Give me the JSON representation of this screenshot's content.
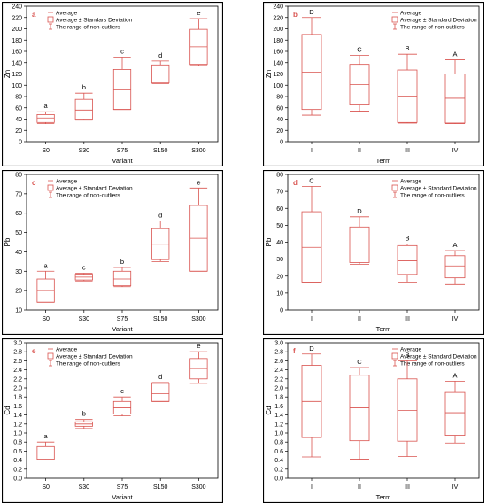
{
  "chart_data": [
    {
      "type": "box",
      "panel_label": "a",
      "xlabel": "Variant",
      "ylabel": "Zn",
      "ylim": [
        0,
        240
      ],
      "yticks": [
        0,
        20,
        40,
        60,
        80,
        100,
        120,
        140,
        160,
        180,
        200,
        220,
        240
      ],
      "legend": [
        "Average",
        "Average ± Standars Deviation",
        "The range of non-outliers"
      ],
      "legend_position": "top-left",
      "categories": [
        "S0",
        "S30",
        "S75",
        "S150",
        "S300"
      ],
      "boxes": [
        {
          "category": "S0",
          "whisker_low": 32,
          "box_low": 34,
          "mean": 42,
          "box_high": 48,
          "whisker_high": 53,
          "group": "a"
        },
        {
          "category": "S30",
          "whisker_low": 38,
          "box_low": 40,
          "mean": 56,
          "box_high": 75,
          "whisker_high": 86,
          "group": "b"
        },
        {
          "category": "S75",
          "whisker_low": 57,
          "box_low": 57,
          "mean": 92,
          "box_high": 128,
          "whisker_high": 150,
          "group": "c"
        },
        {
          "category": "S150",
          "whisker_low": 103,
          "box_low": 104,
          "mean": 120,
          "box_high": 136,
          "whisker_high": 143,
          "group": "d"
        },
        {
          "category": "S300",
          "whisker_low": 135,
          "box_low": 137,
          "mean": 168,
          "box_high": 199,
          "whisker_high": 218,
          "group": "e"
        }
      ]
    },
    {
      "type": "box",
      "panel_label": "b",
      "xlabel": "Term",
      "ylabel": "Zn",
      "ylim": [
        0,
        240
      ],
      "yticks": [
        0,
        20,
        40,
        60,
        80,
        100,
        120,
        140,
        160,
        180,
        200,
        220,
        240
      ],
      "legend": [
        "Average",
        "Average ± Standard Deviation",
        "The range of non-outliers"
      ],
      "legend_position": "top-right",
      "categories": [
        "I",
        "II",
        "III",
        "IV"
      ],
      "boxes": [
        {
          "category": "I",
          "whisker_low": 47,
          "box_low": 57,
          "mean": 123,
          "box_high": 190,
          "whisker_high": 220,
          "group": "D"
        },
        {
          "category": "II",
          "whisker_low": 54,
          "box_low": 65,
          "mean": 101,
          "box_high": 137,
          "whisker_high": 153,
          "group": "C"
        },
        {
          "category": "III",
          "whisker_low": 33,
          "box_low": 34,
          "mean": 81,
          "box_high": 127,
          "whisker_high": 155,
          "group": "B"
        },
        {
          "category": "IV",
          "whisker_low": 32,
          "box_low": 33,
          "mean": 77,
          "box_high": 120,
          "whisker_high": 145,
          "group": "A"
        }
      ]
    },
    {
      "type": "box",
      "panel_label": "c",
      "xlabel": "Variant",
      "ylabel": "Pb",
      "ylim": [
        10,
        80
      ],
      "yticks": [
        10,
        20,
        30,
        40,
        50,
        60,
        70,
        80
      ],
      "legend": [
        "Average",
        "Average ± Standard Deviation",
        "The range of non-outliers"
      ],
      "legend_position": "top-left",
      "categories": [
        "S0",
        "S30",
        "S75",
        "S150",
        "S300"
      ],
      "boxes": [
        {
          "category": "S0",
          "whisker_low": 14,
          "box_low": 14,
          "mean": 20,
          "box_high": 26,
          "whisker_high": 30,
          "group": "a"
        },
        {
          "category": "S30",
          "whisker_low": 25,
          "box_low": 25.5,
          "mean": 27,
          "box_high": 28.5,
          "whisker_high": 29,
          "group": "c"
        },
        {
          "category": "S75",
          "whisker_low": 22,
          "box_low": 22.5,
          "mean": 26,
          "box_high": 30,
          "whisker_high": 32,
          "group": "b"
        },
        {
          "category": "S150",
          "whisker_low": 35,
          "box_low": 36,
          "mean": 44,
          "box_high": 52,
          "whisker_high": 56,
          "group": "d"
        },
        {
          "category": "S300",
          "whisker_low": 30,
          "box_low": 30,
          "mean": 47,
          "box_high": 64,
          "whisker_high": 73,
          "group": "e"
        }
      ]
    },
    {
      "type": "box",
      "panel_label": "d",
      "xlabel": "Term",
      "ylabel": "Pb",
      "ylim": [
        0,
        80
      ],
      "yticks": [
        0,
        10,
        20,
        30,
        40,
        50,
        60,
        70,
        80
      ],
      "legend": [
        "Average",
        "Average ± Standard Deviation",
        "The range of non-outliers"
      ],
      "legend_position": "top-right",
      "categories": [
        "I",
        "II",
        "III",
        "IV"
      ],
      "boxes": [
        {
          "category": "I",
          "whisker_low": 16,
          "box_low": 16,
          "mean": 37,
          "box_high": 58,
          "whisker_high": 73,
          "group": "C"
        },
        {
          "category": "II",
          "whisker_low": 27,
          "box_low": 28,
          "mean": 39,
          "box_high": 49,
          "whisker_high": 55,
          "group": "D"
        },
        {
          "category": "III",
          "whisker_low": 16,
          "box_low": 21,
          "mean": 29,
          "box_high": 38,
          "whisker_high": 39,
          "group": "B"
        },
        {
          "category": "IV",
          "whisker_low": 15,
          "box_low": 19,
          "mean": 26,
          "box_high": 32,
          "whisker_high": 35,
          "group": "A"
        }
      ]
    },
    {
      "type": "box",
      "panel_label": "e",
      "xlabel": "Variant",
      "ylabel": "Cd",
      "ylim": [
        0,
        3.0
      ],
      "yticks": [
        0.0,
        0.2,
        0.4,
        0.6,
        0.8,
        1.0,
        1.2,
        1.4,
        1.6,
        1.8,
        2.0,
        2.2,
        2.4,
        2.6,
        2.8,
        3.0
      ],
      "legend": [
        "Average",
        "Average ± Standard Deviation",
        "The range of non-outliers"
      ],
      "legend_position": "top-left",
      "categories": [
        "S0",
        "S30",
        "S75",
        "S150",
        "S300"
      ],
      "boxes": [
        {
          "category": "S0",
          "whisker_low": 0.4,
          "box_low": 0.42,
          "mean": 0.56,
          "box_high": 0.7,
          "whisker_high": 0.8,
          "group": "a"
        },
        {
          "category": "S30",
          "whisker_low": 1.1,
          "box_low": 1.15,
          "mean": 1.2,
          "box_high": 1.25,
          "whisker_high": 1.3,
          "group": "b"
        },
        {
          "category": "S75",
          "whisker_low": 1.38,
          "box_low": 1.42,
          "mean": 1.56,
          "box_high": 1.7,
          "whisker_high": 1.8,
          "group": "c"
        },
        {
          "category": "S150",
          "whisker_low": 1.7,
          "box_low": 1.7,
          "mean": 1.87,
          "box_high": 2.1,
          "whisker_high": 2.12,
          "group": "d"
        },
        {
          "category": "S300",
          "whisker_low": 2.1,
          "box_low": 2.2,
          "mean": 2.43,
          "box_high": 2.65,
          "whisker_high": 2.8,
          "group": "e"
        }
      ]
    },
    {
      "type": "box",
      "panel_label": "f",
      "xlabel": "Term",
      "ylabel": "Cd",
      "ylim": [
        0,
        3.0
      ],
      "yticks": [
        0.0,
        0.2,
        0.4,
        0.6,
        0.8,
        1.0,
        1.2,
        1.4,
        1.6,
        1.8,
        2.0,
        2.2,
        2.4,
        2.6,
        2.8,
        3.0
      ],
      "legend": [
        "Average",
        "Average ± Standard Deviation",
        "The range of non-outliers"
      ],
      "legend_position": "top-right",
      "categories": [
        "I",
        "II",
        "III",
        "IV"
      ],
      "boxes": [
        {
          "category": "I",
          "whisker_low": 0.47,
          "box_low": 0.9,
          "mean": 1.7,
          "box_high": 2.5,
          "whisker_high": 2.75,
          "group": "D"
        },
        {
          "category": "II",
          "whisker_low": 0.42,
          "box_low": 0.83,
          "mean": 1.56,
          "box_high": 2.28,
          "whisker_high": 2.45,
          "group": "C"
        },
        {
          "category": "III",
          "whisker_low": 0.48,
          "box_low": 0.82,
          "mean": 1.5,
          "box_high": 2.2,
          "whisker_high": 2.6,
          "group": "B"
        },
        {
          "category": "IV",
          "whisker_low": 0.78,
          "box_low": 0.95,
          "mean": 1.45,
          "box_high": 1.9,
          "whisker_high": 2.15,
          "group": "A"
        }
      ]
    }
  ],
  "style": {
    "box_color": "#d9534f",
    "label_color": "#d9534f",
    "axis_color": "#000000",
    "frame_color": "#000000"
  }
}
